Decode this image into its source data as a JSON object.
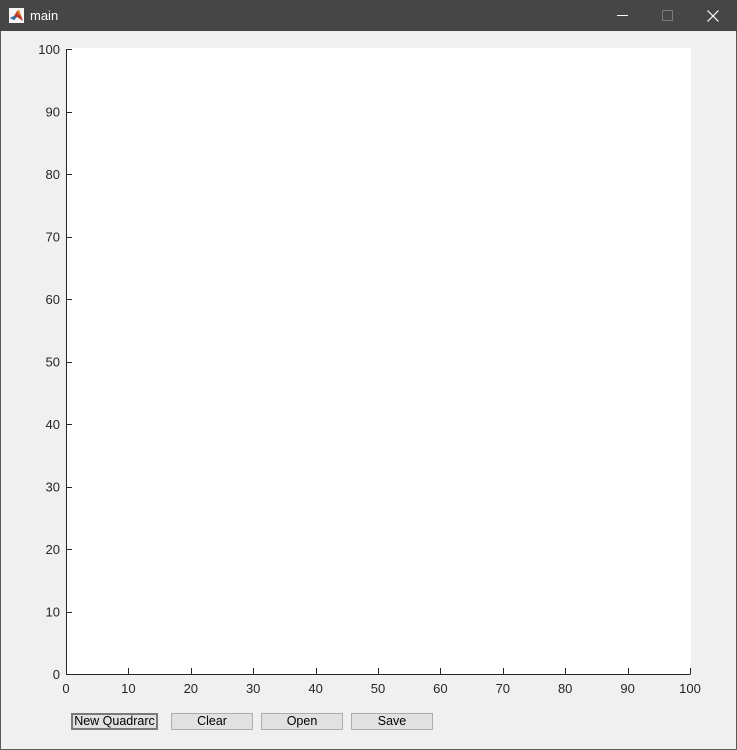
{
  "window": {
    "title": "main",
    "colors": {
      "titlebar": "#464646",
      "body": "#f0f0f0",
      "plot_bg": "#ffffff",
      "axis": "#262626"
    },
    "controls": {
      "minimize_icon": "minimize-icon",
      "maximize_icon": "maximize-icon",
      "close_icon": "close-icon"
    }
  },
  "buttons": {
    "new_quadrarc": "New Quadrarc",
    "clear": "Clear",
    "open": "Open",
    "save": "Save"
  },
  "chart_data": {
    "type": "line",
    "x": [],
    "series": [],
    "xlim": [
      0,
      100
    ],
    "ylim": [
      0,
      100
    ],
    "xticks": [
      0,
      10,
      20,
      30,
      40,
      50,
      60,
      70,
      80,
      90,
      100
    ],
    "yticks": [
      0,
      10,
      20,
      30,
      40,
      50,
      60,
      70,
      80,
      90,
      100
    ],
    "grid": false,
    "title": "",
    "xlabel": "",
    "ylabel": ""
  }
}
